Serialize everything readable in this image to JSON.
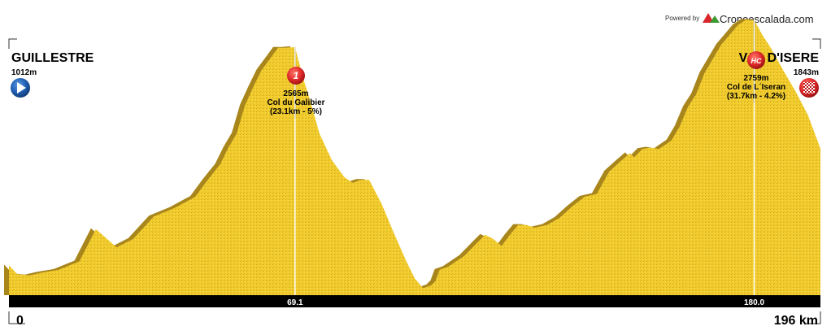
{
  "branding": {
    "powered_by": "Powered by",
    "site": "Cronoescalada.com"
  },
  "colors": {
    "terrain": "#f2cc2c",
    "shadow": "#a8861c",
    "axis_bar": "#000000",
    "badge_red": "#e12a2a",
    "start_blue": "#1f5fb3"
  },
  "start": {
    "name": "GUILLESTRE",
    "elevation": "1012m",
    "icon": "play-arrow-icon"
  },
  "finish": {
    "name": "VAL D'ISERE",
    "elevation": "1843m",
    "icon": "checkered-flag-icon"
  },
  "climbs": [
    {
      "badge": "1",
      "elevation": "2565m",
      "name": "Col du Galibier",
      "detail": "(23.1km - 5%)",
      "km": 69.1,
      "km_label": "69.1"
    },
    {
      "badge": "HC",
      "elevation": "2759m",
      "name": "Col de L´Iseran",
      "detail": "(31.7km - 4.2%)",
      "km": 180.0,
      "km_label": "180.0"
    }
  ],
  "chart_data": {
    "type": "area",
    "xlabel": "",
    "ylabel": "",
    "xlim": [
      0,
      196
    ],
    "ylim": [
      800,
      2900
    ],
    "x_start_label": "0",
    "x_end_label": "196 km",
    "series": [
      {
        "x": [
          0,
          2,
          5,
          8,
          12,
          17,
          21,
          26,
          30,
          35,
          40,
          45,
          48,
          51,
          53,
          55,
          57,
          59,
          61,
          63,
          65,
          67,
          69.1,
          71,
          73,
          75,
          78,
          81,
          83,
          85,
          87,
          90,
          93,
          96,
          98,
          100,
          102,
          103,
          104,
          106,
          108,
          110,
          113,
          115,
          117,
          119,
          121,
          123,
          125,
          127,
          130,
          133,
          136,
          139,
          142,
          145,
          148,
          150,
          151,
          153,
          155,
          157,
          160,
          162,
          164,
          166,
          168,
          170,
          172,
          174,
          176,
          178,
          180.0,
          182,
          184,
          187,
          190,
          193,
          196
        ],
        "y": [
          1012,
          950,
          940,
          960,
          980,
          1040,
          1270,
          1140,
          1200,
          1360,
          1420,
          1500,
          1620,
          1730,
          1850,
          1950,
          2150,
          2280,
          2400,
          2480,
          2560,
          2560,
          2565,
          2350,
          2160,
          1950,
          1760,
          1640,
          1600,
          1620,
          1620,
          1450,
          1240,
          1040,
          920,
          850,
          870,
          900,
          980,
          1000,
          1040,
          1080,
          1170,
          1230,
          1200,
          1150,
          1230,
          1300,
          1300,
          1280,
          1300,
          1350,
          1430,
          1500,
          1520,
          1680,
          1760,
          1810,
          1780,
          1840,
          1850,
          1840,
          1900,
          2000,
          2140,
          2230,
          2380,
          2480,
          2580,
          2650,
          2720,
          2759,
          2759,
          2650,
          2560,
          2400,
          2250,
          2080,
          1843
        ]
      }
    ]
  }
}
